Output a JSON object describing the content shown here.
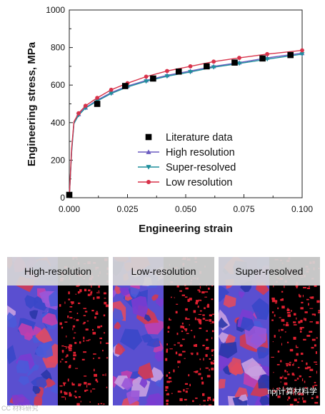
{
  "chart_data": {
    "type": "line",
    "xlabel": "Engineering strain",
    "ylabel": "Engineering stress, MPa",
    "xlim": [
      0,
      0.1
    ],
    "ylim": [
      0,
      1000
    ],
    "x_ticks": [
      "0.000",
      "0.025",
      "0.050",
      "0.075",
      "0.100"
    ],
    "y_ticks": [
      "0",
      "200",
      "400",
      "600",
      "800",
      "1000"
    ],
    "legend_position": "bottom-right",
    "series": [
      {
        "name": "Literature data",
        "style": "markers",
        "marker": "square",
        "color": "#000000",
        "x": [
          0.0,
          0.012,
          0.024,
          0.036,
          0.047,
          0.059,
          0.071,
          0.083,
          0.095
        ],
        "y": [
          15,
          500,
          595,
          635,
          672,
          700,
          720,
          742,
          760
        ]
      },
      {
        "name": "High resolution",
        "style": "line-markers",
        "marker": "triangle-up",
        "color": "#6b5cc0",
        "x": [
          0.0,
          0.001,
          0.002,
          0.004,
          0.007,
          0.012,
          0.018,
          0.025,
          0.033,
          0.042,
          0.052,
          0.062,
          0.073,
          0.085,
          0.1
        ],
        "y": [
          0,
          250,
          400,
          445,
          480,
          520,
          560,
          595,
          625,
          652,
          675,
          700,
          720,
          745,
          770
        ]
      },
      {
        "name": "Super-resolved",
        "style": "line-markers",
        "marker": "triangle-down",
        "color": "#1f8f9c",
        "x": [
          0.0,
          0.001,
          0.002,
          0.004,
          0.007,
          0.012,
          0.018,
          0.025,
          0.033,
          0.042,
          0.052,
          0.062,
          0.073,
          0.085,
          0.1
        ],
        "y": [
          0,
          240,
          395,
          440,
          478,
          515,
          555,
          590,
          620,
          647,
          670,
          695,
          715,
          738,
          765
        ]
      },
      {
        "name": "Low resolution",
        "style": "line-markers",
        "marker": "circle",
        "color": "#d8324a",
        "x": [
          0.0,
          0.001,
          0.002,
          0.004,
          0.007,
          0.012,
          0.018,
          0.025,
          0.033,
          0.042,
          0.052,
          0.062,
          0.073,
          0.085,
          0.1
        ],
        "y": [
          0,
          260,
          405,
          450,
          490,
          532,
          575,
          610,
          645,
          675,
          700,
          725,
          745,
          765,
          785
        ]
      }
    ]
  },
  "panels": [
    {
      "label": "High-resolution"
    },
    {
      "label": "Low-resolution"
    },
    {
      "label": "Super-resolved"
    }
  ],
  "watermark": "npj计算材料学",
  "corner_mark": "CC 材料研究"
}
